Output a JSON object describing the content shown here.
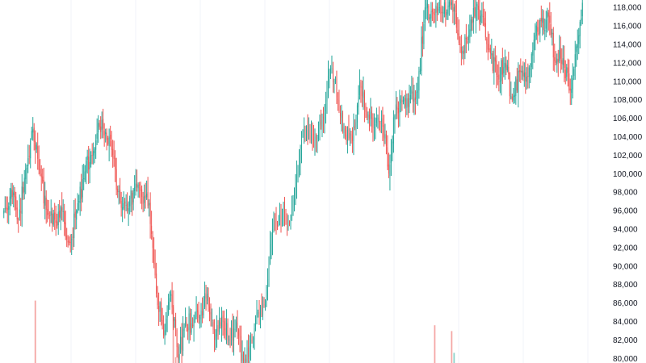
{
  "chart_data": {
    "type": "candlestick",
    "title": "",
    "xlabel": "",
    "ylabel": "",
    "ylim": [
      79500,
      118800
    ],
    "y_ticks": [
      80000,
      82000,
      84000,
      86000,
      88000,
      90000,
      92000,
      94000,
      96000,
      98000,
      100000,
      102000,
      104000,
      106000,
      108000,
      110000,
      112000,
      114000,
      116000,
      118000
    ],
    "y_tick_labels": [
      "80,000",
      "82,000",
      "84,000",
      "86,000",
      "88,000",
      "90,000",
      "92,000",
      "94,000",
      "96,000",
      "98,000",
      "100,000",
      "102,000",
      "104,000",
      "106,000",
      "108,000",
      "110,000",
      "112,000",
      "114,000",
      "116,000",
      "118,000"
    ],
    "axis_position": "right",
    "grid": {
      "vertical": true,
      "horizontal": false
    },
    "colors": {
      "up": "#26a69a",
      "down": "#ef5350",
      "volume_down": "#f4a6a4",
      "volume_up": "#8fd3cb",
      "grid": "#f0f3fa",
      "axis_text": "#131722"
    },
    "ohlc_anchors": [
      [
        0,
        96000
      ],
      [
        6,
        98400
      ],
      [
        12,
        95000
      ],
      [
        18,
        100500
      ],
      [
        24,
        104800
      ],
      [
        30,
        100000
      ],
      [
        36,
        95500
      ],
      [
        42,
        95000
      ],
      [
        48,
        96000
      ],
      [
        54,
        92500
      ],
      [
        60,
        96000
      ],
      [
        66,
        99500
      ],
      [
        72,
        102000
      ],
      [
        78,
        105500
      ],
      [
        84,
        104500
      ],
      [
        90,
        102000
      ],
      [
        96,
        97000
      ],
      [
        102,
        96000
      ],
      [
        108,
        98500
      ],
      [
        114,
        97500
      ],
      [
        120,
        96800
      ],
      [
        126,
        87000
      ],
      [
        132,
        82500
      ],
      [
        138,
        87000
      ],
      [
        144,
        80000
      ],
      [
        150,
        84000
      ],
      [
        156,
        83500
      ],
      [
        162,
        84500
      ],
      [
        168,
        87000
      ],
      [
        174,
        82000
      ],
      [
        180,
        84500
      ],
      [
        186,
        82000
      ],
      [
        192,
        84000
      ],
      [
        198,
        79000
      ],
      [
        204,
        82000
      ],
      [
        210,
        85000
      ],
      [
        216,
        85800
      ],
      [
        222,
        94000
      ],
      [
        228,
        95500
      ],
      [
        234,
        94500
      ],
      [
        240,
        97500
      ],
      [
        246,
        104000
      ],
      [
        252,
        104500
      ],
      [
        258,
        103800
      ],
      [
        264,
        106000
      ],
      [
        270,
        111500
      ],
      [
        276,
        108000
      ],
      [
        282,
        104000
      ],
      [
        288,
        103500
      ],
      [
        294,
        110000
      ],
      [
        300,
        106000
      ],
      [
        306,
        105000
      ],
      [
        312,
        106000
      ],
      [
        318,
        100000
      ],
      [
        324,
        107500
      ],
      [
        330,
        108000
      ],
      [
        336,
        108500
      ],
      [
        342,
        109000
      ],
      [
        348,
        118000
      ],
      [
        354,
        117500
      ],
      [
        360,
        118000
      ],
      [
        366,
        117500
      ],
      [
        372,
        118000
      ],
      [
        378,
        113000
      ],
      [
        384,
        115000
      ],
      [
        390,
        118000
      ],
      [
        396,
        117000
      ],
      [
        402,
        113000
      ],
      [
        408,
        110500
      ],
      [
        414,
        112000
      ],
      [
        420,
        108000
      ],
      [
        426,
        111000
      ],
      [
        432,
        110500
      ],
      [
        438,
        114500
      ],
      [
        444,
        116500
      ],
      [
        450,
        117000
      ],
      [
        456,
        112000
      ],
      [
        462,
        112500
      ],
      [
        468,
        109000
      ],
      [
        474,
        114000
      ],
      [
        478,
        118500
      ]
    ],
    "volume_spikes": [
      {
        "day": 26,
        "value": 0.43,
        "dir": "down"
      },
      {
        "day": 140,
        "value": 0.5,
        "dir": "down"
      },
      {
        "day": 142,
        "value": 0.04,
        "dir": "down"
      },
      {
        "day": 356,
        "value": 0.26,
        "dir": "down"
      },
      {
        "day": 370,
        "value": 0.22,
        "dir": "down"
      },
      {
        "day": 372,
        "value": 0.07,
        "dir": "up"
      }
    ]
  }
}
